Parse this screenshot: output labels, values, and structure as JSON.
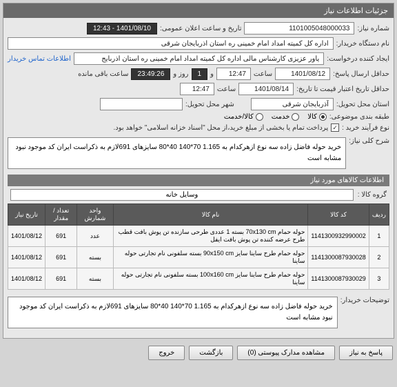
{
  "header": {
    "title": "جزئیات اطلاعات نیاز"
  },
  "info": {
    "need_number_label": "شماره نیاز:",
    "need_number": "1101005048000033",
    "announce_label": "تاریخ و ساعت اعلان عمومی:",
    "announce_value": "1401/08/10 - 12:43",
    "buyer_label": "نام دستگاه خریدار:",
    "buyer_value": "اداره کل کمیته امداد امام خمینی ره استان اذربایجان شرقی",
    "requester_label": "ایجاد کننده درخواست:",
    "requester_value": "یاور عزیزی کارشناس مالی اداره کل کمیته امداد امام خمینی ره استان اذربایج",
    "contact_link": "اطلاعات تماس خریدار",
    "deadline_label": "حداقل ارسال پاسخ:",
    "deadline_date": "1401/08/12",
    "time_label": "ساعت",
    "deadline_time": "12:47",
    "remaining_label": "و",
    "remaining_days": "1",
    "remaining_days_label": "روز و",
    "remaining_time": "23:49:26",
    "remaining_suffix": "ساعت باقی مانده",
    "validity_label": "حداقل تاریخ اعتبار قیمت تا تاریخ:",
    "validity_date": "1401/08/14",
    "validity_time": "12:47",
    "province_label": "استان محل تحویل:",
    "province_value": "آذربایجان شرقی",
    "city_label": "شهر محل تحویل:",
    "category_label": "طبقه بندی موضوعی:",
    "process_label": "نوع فرآیند خرید :",
    "option_goods": "کالا",
    "option_service": "خدمت",
    "option_both": "کالا/خدمت",
    "payment_text": "پرداخت تمام یا بخشی از مبلغ خرید،از محل \"اسناد خزانه اسلامی\" خواهد بود.",
    "summary_label": "شرح کلی نیاز:",
    "summary_text": "خرید حوله فاضل زاده سه نوع ازهرکدام به 1.165 70*140 40*80 سایزهای 691لازم به ذکراست ایران کد موجود نبود مشابه است"
  },
  "items_section": {
    "title": "اطلاعات کالاهای مورد نیاز",
    "group_label": "گروه کالا :",
    "group_value": "وسایل خانه",
    "columns": [
      "ردیف",
      "کد کالا",
      "نام کالا",
      "واحد شمارش",
      "تعداد / مقدار",
      "تاریخ نیاز"
    ],
    "rows": [
      [
        "1",
        "1141300932990002",
        "حوله حمام 70x130 cm بسته 1 عددی طرحی سازنده تن پوش بافت قطب طرح عرضه کننده تن پوش بافت ایفل",
        "عدد",
        "691",
        "1401/08/12"
      ],
      [
        "2",
        "1141300087930028",
        "حوله حمام طرح ساینا سایز 90x150 cm بسته سلفونی نام تجارتی حوله ساینا",
        "بسته",
        "691",
        "1401/08/12"
      ],
      [
        "3",
        "1141300087930029",
        "حوله حمام طرح ساینا سایز 100x160 cm بسته سلفونی نام تجارتی حوله ساینا",
        "بسته",
        "691",
        "1401/08/12"
      ]
    ]
  },
  "notes": {
    "label": "توضیحات خریدار:",
    "text": "خرید حوله فاضل زاده سه نوع ازهرکدام به 1.165 70*140 40*80 سایزهای 691لازم به ذکراست ایران کد موجود نبود مشابه است"
  },
  "buttons": {
    "respond": "پاسخ به نیاز",
    "attachments": "مشاهده مدارک پیوستی (0)",
    "back": "بازگشت",
    "exit": "خروج"
  }
}
